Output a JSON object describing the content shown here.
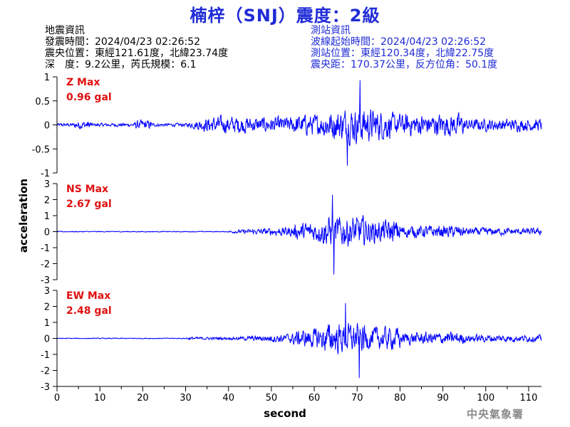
{
  "title": "楠梓（SNJ）震度：2級",
  "quake_info": {
    "heading": "地震資訊",
    "origin_time": "發震時間：2024/04/23 02:26:52",
    "epicenter": "震央位置：東經121.61度，北緯23.74度",
    "depth_magnitude": "深　度：9.2公里，芮氏規模：6.1"
  },
  "station_info": {
    "heading": "測站資訊",
    "waveform_start": "波線起始時間：2024/04/23 02:26:52",
    "station_location": "測站位置：東經120.34度，北緯22.75度",
    "distance_azimuth": "震央距：170.37公里，反方位角：50.1度"
  },
  "agency": "中央氣象署",
  "colors": {
    "trace": "#0000ff",
    "title": "#1f2bd6",
    "max_label": "#e01010"
  },
  "chart_data": {
    "type": "line",
    "xlabel": "second",
    "ylabel": "acceleration",
    "xlim": [
      0,
      113
    ],
    "xticks": [
      0,
      10,
      20,
      30,
      40,
      50,
      60,
      70,
      80,
      90,
      100,
      110
    ],
    "grid": false,
    "panels": [
      {
        "component": "Z",
        "max_label": "Z Max",
        "max_value": "0.96 gal",
        "ylim": [
          -1,
          1
        ],
        "yticks": [
          1,
          0.5,
          0,
          -0.5,
          -1
        ],
        "ytick_labels": [
          "1",
          "0.5",
          "0",
          "-0.5",
          "-1"
        ]
      },
      {
        "component": "NS",
        "max_label": "NS Max",
        "max_value": "2.67 gal",
        "ylim": [
          -3,
          3
        ],
        "yticks": [
          3,
          2,
          1,
          0,
          -1,
          -2,
          -3
        ],
        "ytick_labels": [
          "3",
          "2",
          "1",
          "0",
          "-1",
          "-2",
          "-3"
        ]
      },
      {
        "component": "EW",
        "max_label": "EW Max",
        "max_value": "2.48 gal",
        "ylim": [
          -3,
          3
        ],
        "yticks": [
          3,
          2,
          1,
          0,
          -1,
          -2,
          -3
        ],
        "ytick_labels": [
          "3",
          "2",
          "1",
          "0",
          "-1",
          "-2",
          "-3"
        ]
      }
    ]
  }
}
